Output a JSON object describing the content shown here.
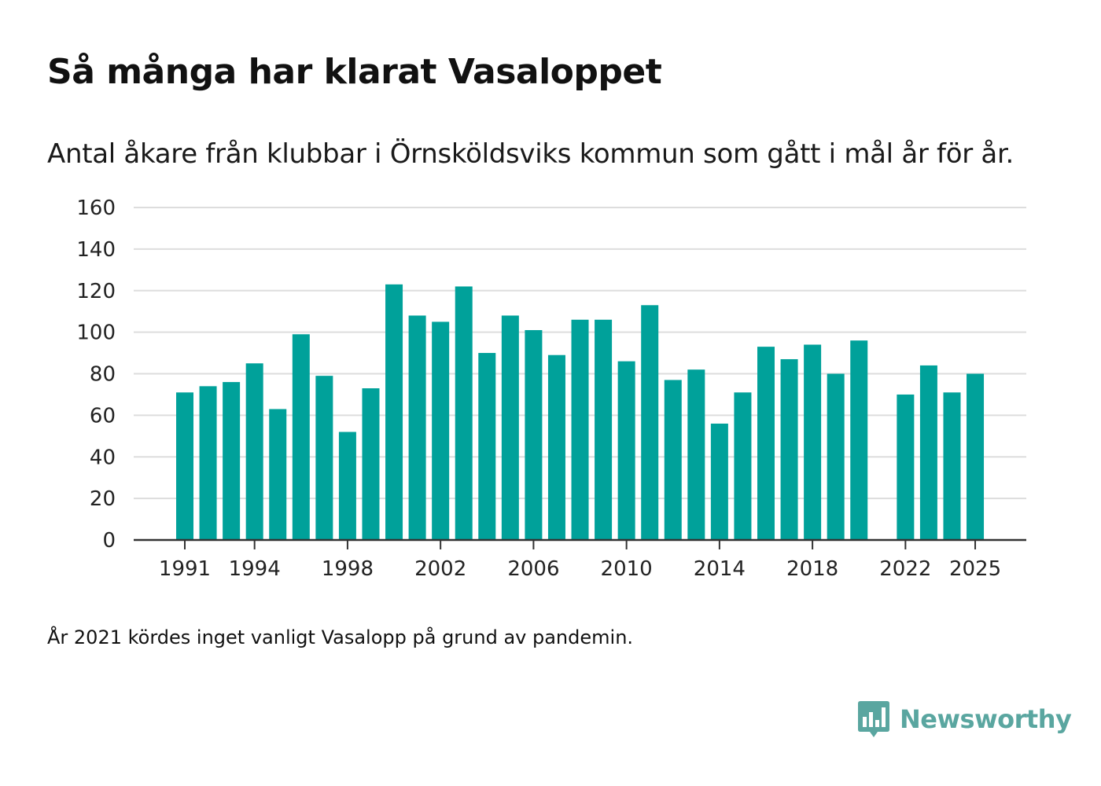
{
  "title": "Så många har klarat Vasaloppet",
  "subtitle": "Antal åkare från klubbar i Örnsköldsviks kommun som gått i mål år för år.",
  "footnote": "År 2021 kördes inget vanligt Vasalopp på grund av pandemin.",
  "brand": {
    "name": "Newsworthy",
    "icon": "newsworthy-logo-icon",
    "color": "#5aa6a0"
  },
  "colors": {
    "bar": "#00a19a",
    "grid": "#dddddd",
    "axis": "#333333",
    "text": "#222222"
  },
  "chart_data": {
    "type": "bar",
    "title": "Så många har klarat Vasaloppet",
    "xlabel": "",
    "ylabel": "",
    "ylim": [
      0,
      160
    ],
    "yticks": [
      0,
      20,
      40,
      60,
      80,
      100,
      120,
      140,
      160
    ],
    "xticks": [
      "1991",
      "1994",
      "1998",
      "2002",
      "2006",
      "2010",
      "2014",
      "2018",
      "2022",
      "2025"
    ],
    "grid": true,
    "categories": [
      "1991",
      "1992",
      "1993",
      "1994",
      "1995",
      "1996",
      "1997",
      "1998",
      "1999",
      "2000",
      "2001",
      "2002",
      "2003",
      "2004",
      "2005",
      "2006",
      "2007",
      "2008",
      "2009",
      "2010",
      "2011",
      "2012",
      "2013",
      "2014",
      "2015",
      "2016",
      "2017",
      "2018",
      "2019",
      "2020",
      "2021",
      "2022",
      "2023",
      "2024",
      "2025"
    ],
    "values": [
      71,
      74,
      76,
      85,
      63,
      99,
      79,
      52,
      73,
      123,
      108,
      105,
      122,
      90,
      108,
      101,
      89,
      106,
      106,
      86,
      113,
      77,
      82,
      56,
      71,
      93,
      87,
      94,
      80,
      96,
      null,
      70,
      84,
      71,
      80
    ]
  }
}
